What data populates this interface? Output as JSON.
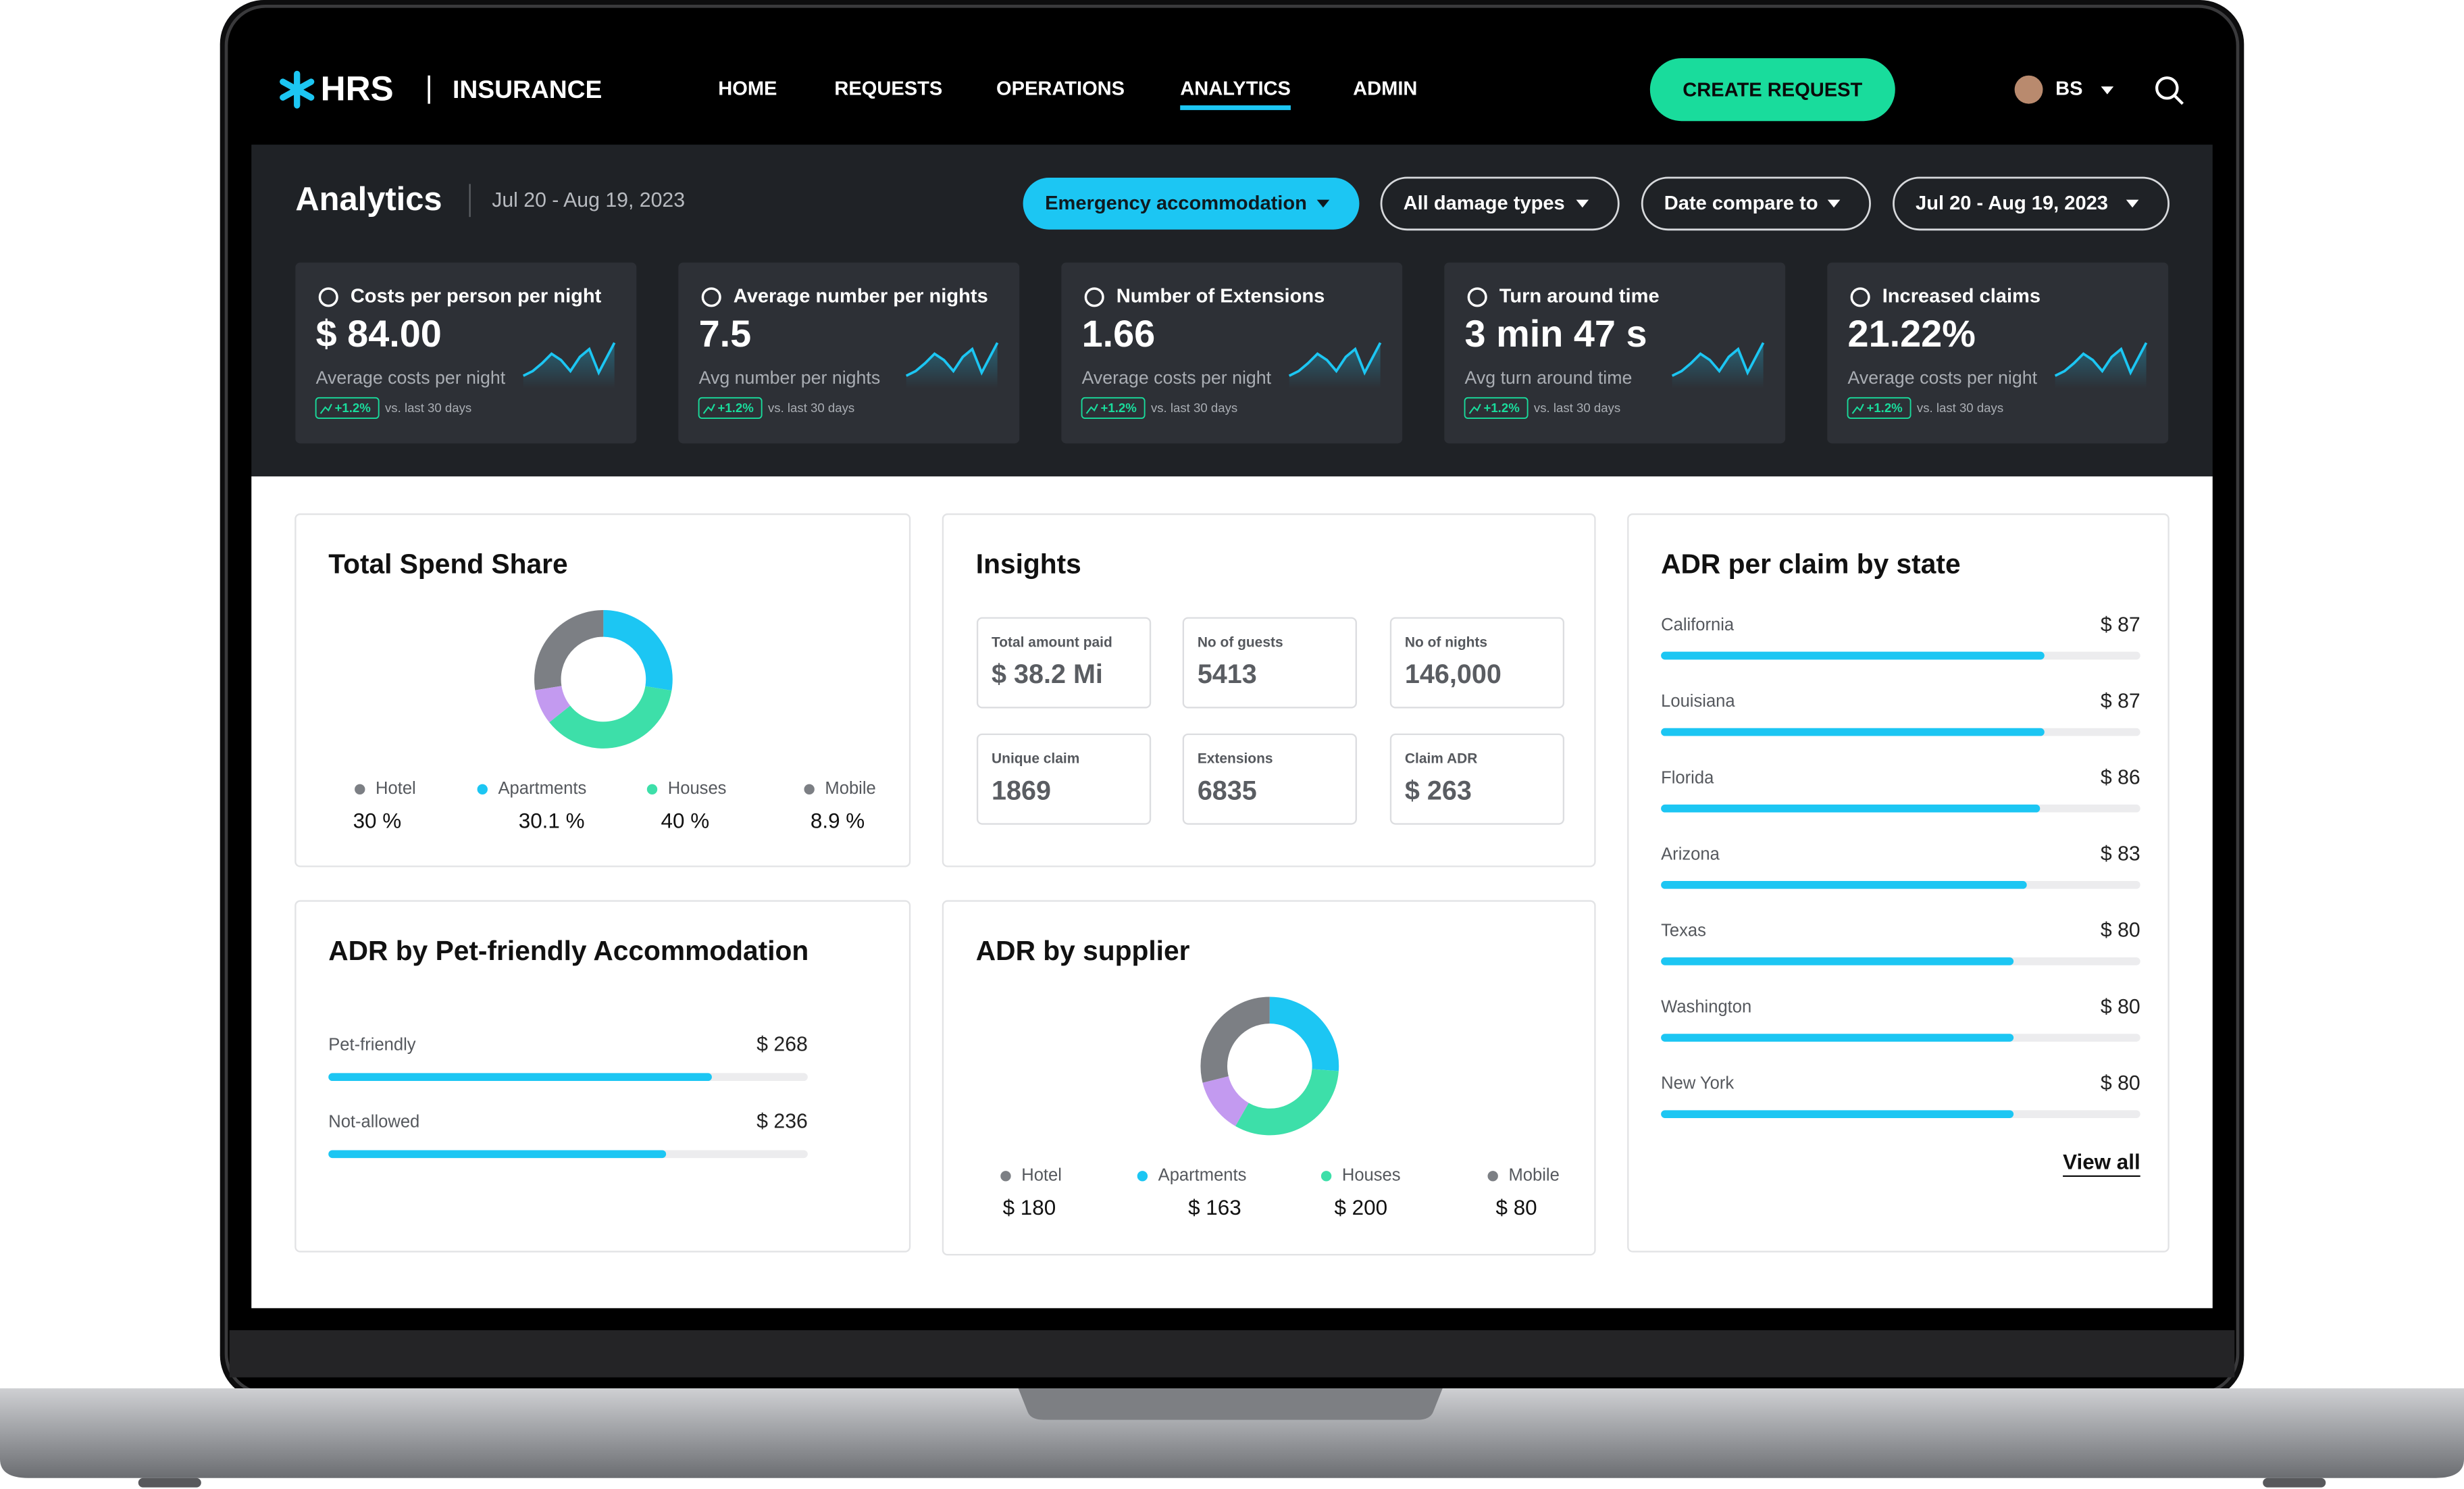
{
  "header": {
    "logo": "HRS",
    "product": "INSURANCE",
    "nav": [
      "HOME",
      "REQUESTS",
      "OPERATIONS",
      "ANALYTICS",
      "ADMIN"
    ],
    "cta": "CREATE REQUEST",
    "user": "BS"
  },
  "toolbar": {
    "title": "Analytics",
    "date": "Jul 20 - Aug 19, 2023",
    "filters": [
      "Emergency accommodation",
      "All damage types",
      "Date compare to",
      "Jul 20 - Aug 19, 2023"
    ]
  },
  "kpis": [
    {
      "title": "Costs per person per night",
      "value": "$ 84.00",
      "caption": "Average costs per night",
      "change": "+1.2%",
      "compare": "vs. last 30 days"
    },
    {
      "title": "Average number per nights",
      "value": "7.5",
      "caption": "Avg number per nights",
      "change": "+1.2%",
      "compare": "vs. last 30 days"
    },
    {
      "title": "Number of Extensions",
      "value": "1.66",
      "caption": "Average costs per night",
      "change": "+1.2%",
      "compare": "vs. last 30 days"
    },
    {
      "title": "Turn around time",
      "value": "3 min 47 s",
      "caption": "Avg turn around time",
      "change": "+1.2%",
      "compare": "vs. last 30 days"
    },
    {
      "title": "Increased claims",
      "value": "21.22%",
      "caption": "Average costs per night",
      "change": "+1.2%",
      "compare": "vs. last 30 days"
    }
  ],
  "spend_share": {
    "title": "Total Spend Share",
    "labels": [
      "Hotel",
      "Apartments",
      "Houses",
      "Mobile"
    ],
    "values": [
      30,
      30.1,
      40,
      8.9
    ],
    "value_labels": [
      "30 %",
      "30.1 %",
      "40 %",
      "8.9 %"
    ],
    "colors": [
      "#7c7f84",
      "#1cc6f3",
      "#3ddfa9",
      "#c39af0"
    ]
  },
  "insights": {
    "title": "Insights",
    "items": [
      {
        "label": "Total amount paid",
        "value": "$ 38.2 Mi"
      },
      {
        "label": "No of guests",
        "value": "5413"
      },
      {
        "label": "No of nights",
        "value": "146,000"
      },
      {
        "label": "Unique claim",
        "value": "1869"
      },
      {
        "label": "Extensions",
        "value": "6835"
      },
      {
        "label": "Claim ADR",
        "value": "$ 263"
      }
    ]
  },
  "pet_friendly": {
    "title": "ADR by Pet-friendly Accommodation",
    "labels": [
      "Pet-friendly",
      "Not-allowed"
    ],
    "values": [
      268,
      236
    ],
    "value_labels": [
      "$ 268",
      "$ 236"
    ],
    "color": "#1cc6f3"
  },
  "supplier": {
    "title": "ADR by supplier",
    "labels": [
      "Hotel",
      "Apartments",
      "Houses",
      "Mobile"
    ],
    "values": [
      180,
      163,
      200,
      80
    ],
    "value_labels": [
      "$ 180",
      "$ 163",
      "$ 200",
      "$ 80"
    ],
    "colors": [
      "#7c7f84",
      "#1cc6f3",
      "#3ddfa9",
      "#c39af0"
    ]
  },
  "states": {
    "title": "ADR per claim by state",
    "labels": [
      "California",
      "Louisiana",
      "Florida",
      "Arizona",
      "Texas",
      "Washington",
      "New York"
    ],
    "values": [
      87,
      87,
      86,
      83,
      80,
      80,
      80
    ],
    "value_labels": [
      "$ 87",
      "$ 87",
      "$ 86",
      "$ 83",
      "$ 80",
      "$ 80",
      "$ 80"
    ],
    "color": "#1cc6f3",
    "link": "View all"
  }
}
